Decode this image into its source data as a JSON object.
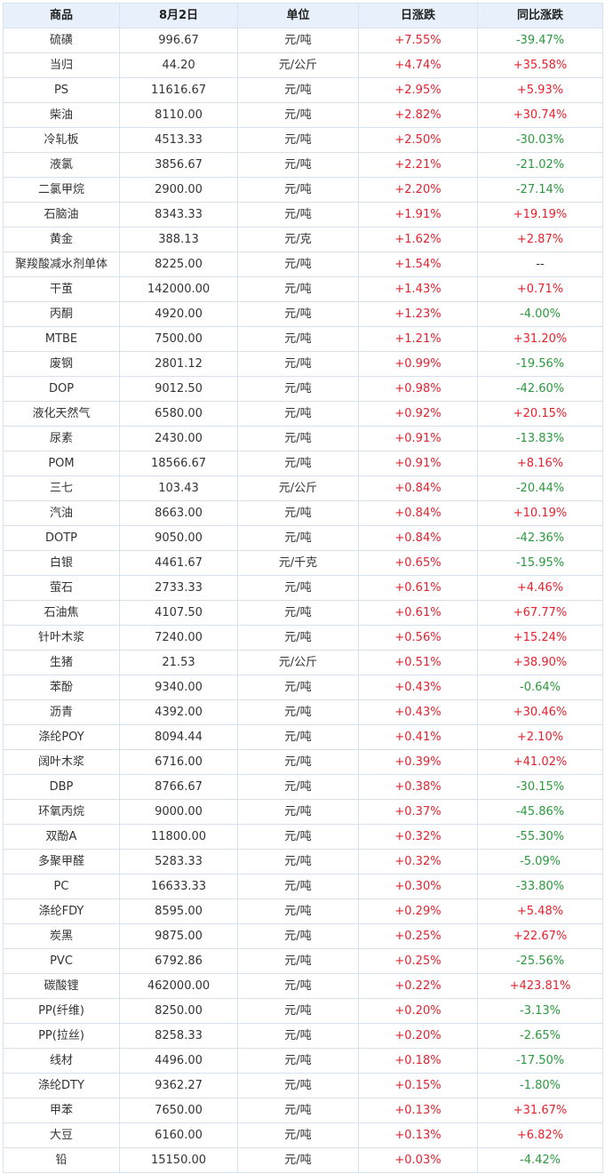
{
  "columns": [
    "商品",
    "8月2日",
    "单位",
    "日涨跌",
    "同比涨跌"
  ],
  "colors": {
    "up": "#e4222d",
    "down": "#2a9a3c",
    "header_bg": "#e8f1fb",
    "border": "#d6e2ee"
  },
  "rows": [
    [
      "硫磺",
      "996.67",
      "元/吨",
      "+7.55%",
      "-39.47%"
    ],
    [
      "当归",
      "44.20",
      "元/公斤",
      "+4.74%",
      "+35.58%"
    ],
    [
      "PS",
      "11616.67",
      "元/吨",
      "+2.95%",
      "+5.93%"
    ],
    [
      "柴油",
      "8110.00",
      "元/吨",
      "+2.82%",
      "+30.74%"
    ],
    [
      "冷轧板",
      "4513.33",
      "元/吨",
      "+2.50%",
      "-30.03%"
    ],
    [
      "液氯",
      "3856.67",
      "元/吨",
      "+2.21%",
      "-21.02%"
    ],
    [
      "二氯甲烷",
      "2900.00",
      "元/吨",
      "+2.20%",
      "-27.14%"
    ],
    [
      "石脑油",
      "8343.33",
      "元/吨",
      "+1.91%",
      "+19.19%"
    ],
    [
      "黄金",
      "388.13",
      "元/克",
      "+1.62%",
      "+2.87%"
    ],
    [
      "聚羧酸减水剂单体",
      "8225.00",
      "元/吨",
      "+1.54%",
      "--"
    ],
    [
      "干茧",
      "142000.00",
      "元/吨",
      "+1.43%",
      "+0.71%"
    ],
    [
      "丙酮",
      "4920.00",
      "元/吨",
      "+1.23%",
      "-4.00%"
    ],
    [
      "MTBE",
      "7500.00",
      "元/吨",
      "+1.21%",
      "+31.20%"
    ],
    [
      "废钢",
      "2801.12",
      "元/吨",
      "+0.99%",
      "-19.56%"
    ],
    [
      "DOP",
      "9012.50",
      "元/吨",
      "+0.98%",
      "-42.60%"
    ],
    [
      "液化天然气",
      "6580.00",
      "元/吨",
      "+0.92%",
      "+20.15%"
    ],
    [
      "尿素",
      "2430.00",
      "元/吨",
      "+0.91%",
      "-13.83%"
    ],
    [
      "POM",
      "18566.67",
      "元/吨",
      "+0.91%",
      "+8.16%"
    ],
    [
      "三七",
      "103.43",
      "元/公斤",
      "+0.84%",
      "-20.44%"
    ],
    [
      "汽油",
      "8663.00",
      "元/吨",
      "+0.84%",
      "+10.19%"
    ],
    [
      "DOTP",
      "9050.00",
      "元/吨",
      "+0.84%",
      "-42.36%"
    ],
    [
      "白银",
      "4461.67",
      "元/千克",
      "+0.65%",
      "-15.95%"
    ],
    [
      "萤石",
      "2733.33",
      "元/吨",
      "+0.61%",
      "+4.46%"
    ],
    [
      "石油焦",
      "4107.50",
      "元/吨",
      "+0.61%",
      "+67.77%"
    ],
    [
      "针叶木浆",
      "7240.00",
      "元/吨",
      "+0.56%",
      "+15.24%"
    ],
    [
      "生猪",
      "21.53",
      "元/公斤",
      "+0.51%",
      "+38.90%"
    ],
    [
      "苯酚",
      "9340.00",
      "元/吨",
      "+0.43%",
      "-0.64%"
    ],
    [
      "沥青",
      "4392.00",
      "元/吨",
      "+0.43%",
      "+30.46%"
    ],
    [
      "涤纶POY",
      "8094.44",
      "元/吨",
      "+0.41%",
      "+2.10%"
    ],
    [
      "阔叶木浆",
      "6716.00",
      "元/吨",
      "+0.39%",
      "+41.02%"
    ],
    [
      "DBP",
      "8766.67",
      "元/吨",
      "+0.38%",
      "-30.15%"
    ],
    [
      "环氧丙烷",
      "9000.00",
      "元/吨",
      "+0.37%",
      "-45.86%"
    ],
    [
      "双酚A",
      "11800.00",
      "元/吨",
      "+0.32%",
      "-55.30%"
    ],
    [
      "多聚甲醛",
      "5283.33",
      "元/吨",
      "+0.32%",
      "-5.09%"
    ],
    [
      "PC",
      "16633.33",
      "元/吨",
      "+0.30%",
      "-33.80%"
    ],
    [
      "涤纶FDY",
      "8595.00",
      "元/吨",
      "+0.29%",
      "+5.48%"
    ],
    [
      "炭黑",
      "9875.00",
      "元/吨",
      "+0.25%",
      "+22.67%"
    ],
    [
      "PVC",
      "6792.86",
      "元/吨",
      "+0.25%",
      "-25.56%"
    ],
    [
      "碳酸锂",
      "462000.00",
      "元/吨",
      "+0.22%",
      "+423.81%"
    ],
    [
      "PP(纤维)",
      "8250.00",
      "元/吨",
      "+0.20%",
      "-3.13%"
    ],
    [
      "PP(拉丝)",
      "8258.33",
      "元/吨",
      "+0.20%",
      "-2.65%"
    ],
    [
      "线材",
      "4496.00",
      "元/吨",
      "+0.18%",
      "-17.50%"
    ],
    [
      "涤纶DTY",
      "9362.27",
      "元/吨",
      "+0.15%",
      "-1.80%"
    ],
    [
      "甲苯",
      "7650.00",
      "元/吨",
      "+0.13%",
      "+31.67%"
    ],
    [
      "大豆",
      "6160.00",
      "元/吨",
      "+0.13%",
      "+6.82%"
    ],
    [
      "铅",
      "15150.00",
      "元/吨",
      "+0.03%",
      "-4.42%"
    ]
  ]
}
